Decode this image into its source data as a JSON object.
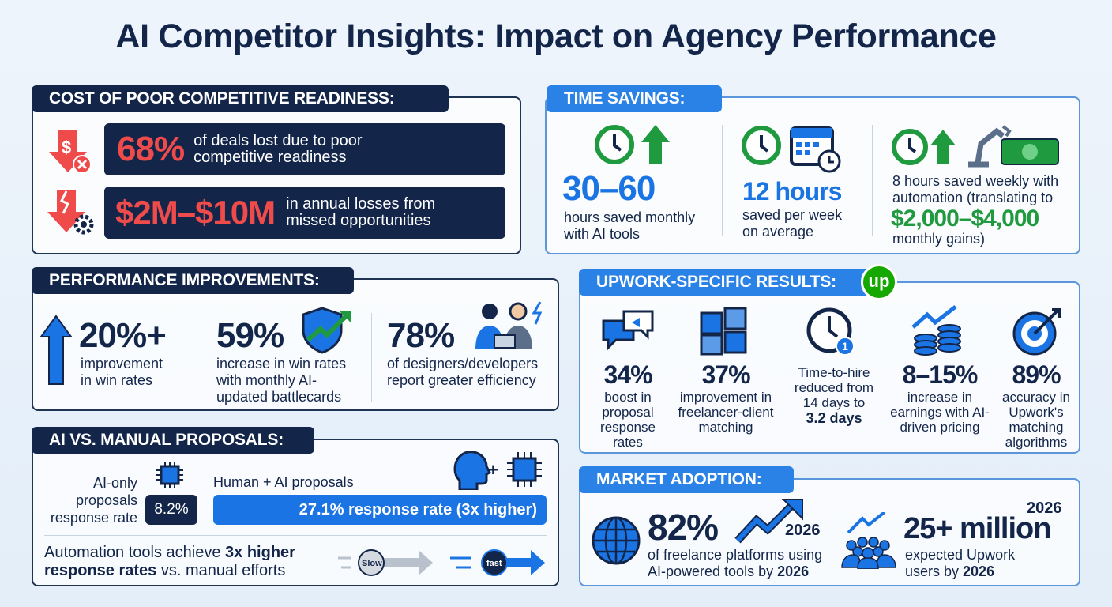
{
  "title": "AI Competitor Insights: Impact on Agency Performance",
  "cost": {
    "header": "COST OF POOR COMPETITIVE READINESS:",
    "items": [
      {
        "value": "68%",
        "text": "of deals lost due to poor competitive readiness"
      },
      {
        "value": "$2M–$10M",
        "text": "in annual losses from missed opportunities"
      }
    ]
  },
  "time": {
    "header": "TIME SAVINGS:",
    "items": [
      {
        "value": "30–60",
        "text": "hours saved monthly with AI tools"
      },
      {
        "value": "12 hours",
        "text": "saved per week on average"
      },
      {
        "text_before": "8 hours saved weekly with automation (translating to",
        "value": "$2,000–$4,000",
        "text_after": "monthly gains)"
      }
    ]
  },
  "perf": {
    "header": "PERFORMANCE IMPROVEMENTS:",
    "items": [
      {
        "value": "20%+",
        "text": "improvement in win rates"
      },
      {
        "value": "59%",
        "text": "increase in win rates with monthly AI-updated battlecards"
      },
      {
        "value": "78%",
        "text": "of designers/developers report greater efficiency"
      }
    ]
  },
  "upwork": {
    "header": "UPWORK-SPECIFIC RESULTS:",
    "logo": "up",
    "items": [
      {
        "value": "34%",
        "text": "boost in proposal response rates"
      },
      {
        "value": "37%",
        "text": "improvement in freelancer-client matching"
      },
      {
        "text": "Time-to-hire reduced from 14 days to",
        "value": "3.2 days",
        "badge": "1"
      },
      {
        "value": "8–15%",
        "text": "increase in earnings with AI-driven pricing"
      },
      {
        "value": "89%",
        "text": "accuracy in Upwork's matching algorithms"
      }
    ]
  },
  "proposals": {
    "header": "AI VS. MANUAL PROPOSALS:",
    "ai_label": "AI-only proposals response rate",
    "ai_value": "8.2%",
    "human_label": "Human + AI proposals",
    "human_value": "27.1% response rate (3x higher)",
    "plus": "+",
    "foot_before": "Automation tools achieve ",
    "foot_bold": "3x higher response rates",
    "foot_after": " vs. manual efforts",
    "slow": "Slow",
    "fast": "fast"
  },
  "market": {
    "header": "MARKET ADOPTION:",
    "a": {
      "value": "82%",
      "year": "2026",
      "text": "of freelance platforms using AI-powered tools by ",
      "bold": "2026"
    },
    "b": {
      "value": "25+ million",
      "year": "2026",
      "text": "expected Upwork users by ",
      "bold": "2026"
    }
  },
  "colors": {
    "navy": "#13264a",
    "blue": "#1b74e4",
    "red": "#ef4b4b",
    "green": "#1f9a3f",
    "upwork": "#14a800"
  }
}
